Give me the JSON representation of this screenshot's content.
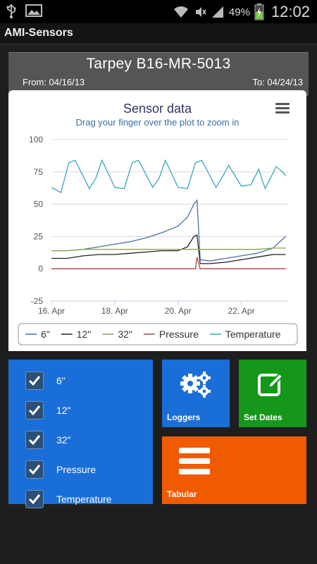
{
  "status_bar": {
    "icons": [
      "usb-icon",
      "image-icon",
      "wifi-icon",
      "mute-icon",
      "signal-icon",
      "battery-charging-icon"
    ],
    "battery_percent": "49%",
    "time": "12:02"
  },
  "app": {
    "title": "AMI-Sensors"
  },
  "header": {
    "sensor_name": "Tarpey B16-MR-5013",
    "from_label": "From: 04/16/13",
    "to_label": "To: 04/24/13"
  },
  "chart": {
    "title": "Sensor data",
    "subtitle": "Drag your finger over the plot to zoom in",
    "menu_icon": "hamburger-menu-icon"
  },
  "chart_data": {
    "type": "line",
    "title": "Sensor data",
    "subtitle": "Drag your finger over the plot to zoom in",
    "xlabel": "",
    "ylabel": "",
    "x_ticks": [
      "16. Apr",
      "18. Apr",
      "20. Apr",
      "22. Apr"
    ],
    "x_tick_days": [
      16,
      18,
      20,
      22
    ],
    "xlim": [
      16,
      23.5
    ],
    "y_ticks": [
      -25,
      0,
      25,
      50,
      75,
      100
    ],
    "ylim": [
      -25,
      100
    ],
    "grid": true,
    "legend_position": "bottom",
    "series": [
      {
        "name": "6\"",
        "color": "#4572a7",
        "x": [
          16,
          16.5,
          17,
          17.5,
          18,
          18.5,
          19,
          19.5,
          20,
          20.3,
          20.5,
          20.6,
          20.7,
          21,
          21.5,
          22,
          22.5,
          23,
          23.4
        ],
        "y": [
          14,
          14,
          15,
          17,
          19,
          21,
          24,
          28,
          33,
          40,
          50,
          53,
          7,
          6,
          8,
          10,
          12,
          16,
          25
        ]
      },
      {
        "name": "12\"",
        "color": "#222222",
        "x": [
          16,
          16.5,
          17,
          17.5,
          18,
          18.5,
          19,
          19.5,
          20,
          20.3,
          20.5,
          20.6,
          20.7,
          21,
          21.5,
          22,
          22.5,
          23,
          23.4
        ],
        "y": [
          8,
          8,
          10,
          11,
          11,
          12,
          13,
          14,
          14,
          17,
          25,
          26,
          4,
          4,
          5,
          7,
          9,
          11,
          11
        ]
      },
      {
        "name": "32\"",
        "color": "#89a54e",
        "x": [
          16,
          16.5,
          17,
          17.5,
          18,
          18.5,
          19,
          19.5,
          20,
          20.5,
          21,
          21.5,
          22,
          22.5,
          23,
          23.4
        ],
        "y": [
          14,
          14,
          15,
          15,
          15,
          15,
          15,
          15,
          15,
          15,
          15,
          15,
          15,
          15,
          16,
          16
        ]
      },
      {
        "name": "Pressure",
        "color": "#aa4643",
        "x": [
          16,
          17,
          18,
          19,
          20,
          20.55,
          20.6,
          20.7,
          21,
          22,
          23,
          23.4
        ],
        "y": [
          0,
          0,
          0,
          0,
          0,
          0,
          9,
          0,
          0,
          0,
          0,
          0
        ]
      },
      {
        "name": "Temperature",
        "color": "#3aa6c0",
        "x": [
          16,
          16.3,
          16.55,
          16.75,
          17.2,
          17.4,
          17.6,
          18,
          18.3,
          18.55,
          18.75,
          19.2,
          19.4,
          19.6,
          20,
          20.3,
          20.55,
          20.75,
          21.2,
          21.4,
          21.6,
          22,
          22.3,
          22.55,
          22.75,
          23.1,
          23.3,
          23.4
        ],
        "y": [
          63,
          59,
          82,
          84,
          62,
          70,
          84,
          63,
          62,
          82,
          84,
          63,
          70,
          84,
          63,
          62,
          82,
          84,
          63,
          71,
          80,
          64,
          65,
          77,
          62,
          79,
          75,
          72
        ]
      }
    ]
  },
  "checklist": {
    "items": [
      {
        "label": "6\"",
        "checked": true
      },
      {
        "label": "12\"",
        "checked": true
      },
      {
        "label": "32\"",
        "checked": true
      },
      {
        "label": "Pressure",
        "checked": true
      },
      {
        "label": "Temperature",
        "checked": true
      }
    ]
  },
  "tiles": {
    "loggers": {
      "label": "Loggers",
      "icon": "gears-icon",
      "color": "#1a6ed8"
    },
    "set_dates": {
      "label": "Set Dates",
      "icon": "edit-icon",
      "color": "#14971a"
    },
    "tabular": {
      "label": "Tabular",
      "icon": "list-icon",
      "color": "#f05a00"
    }
  }
}
